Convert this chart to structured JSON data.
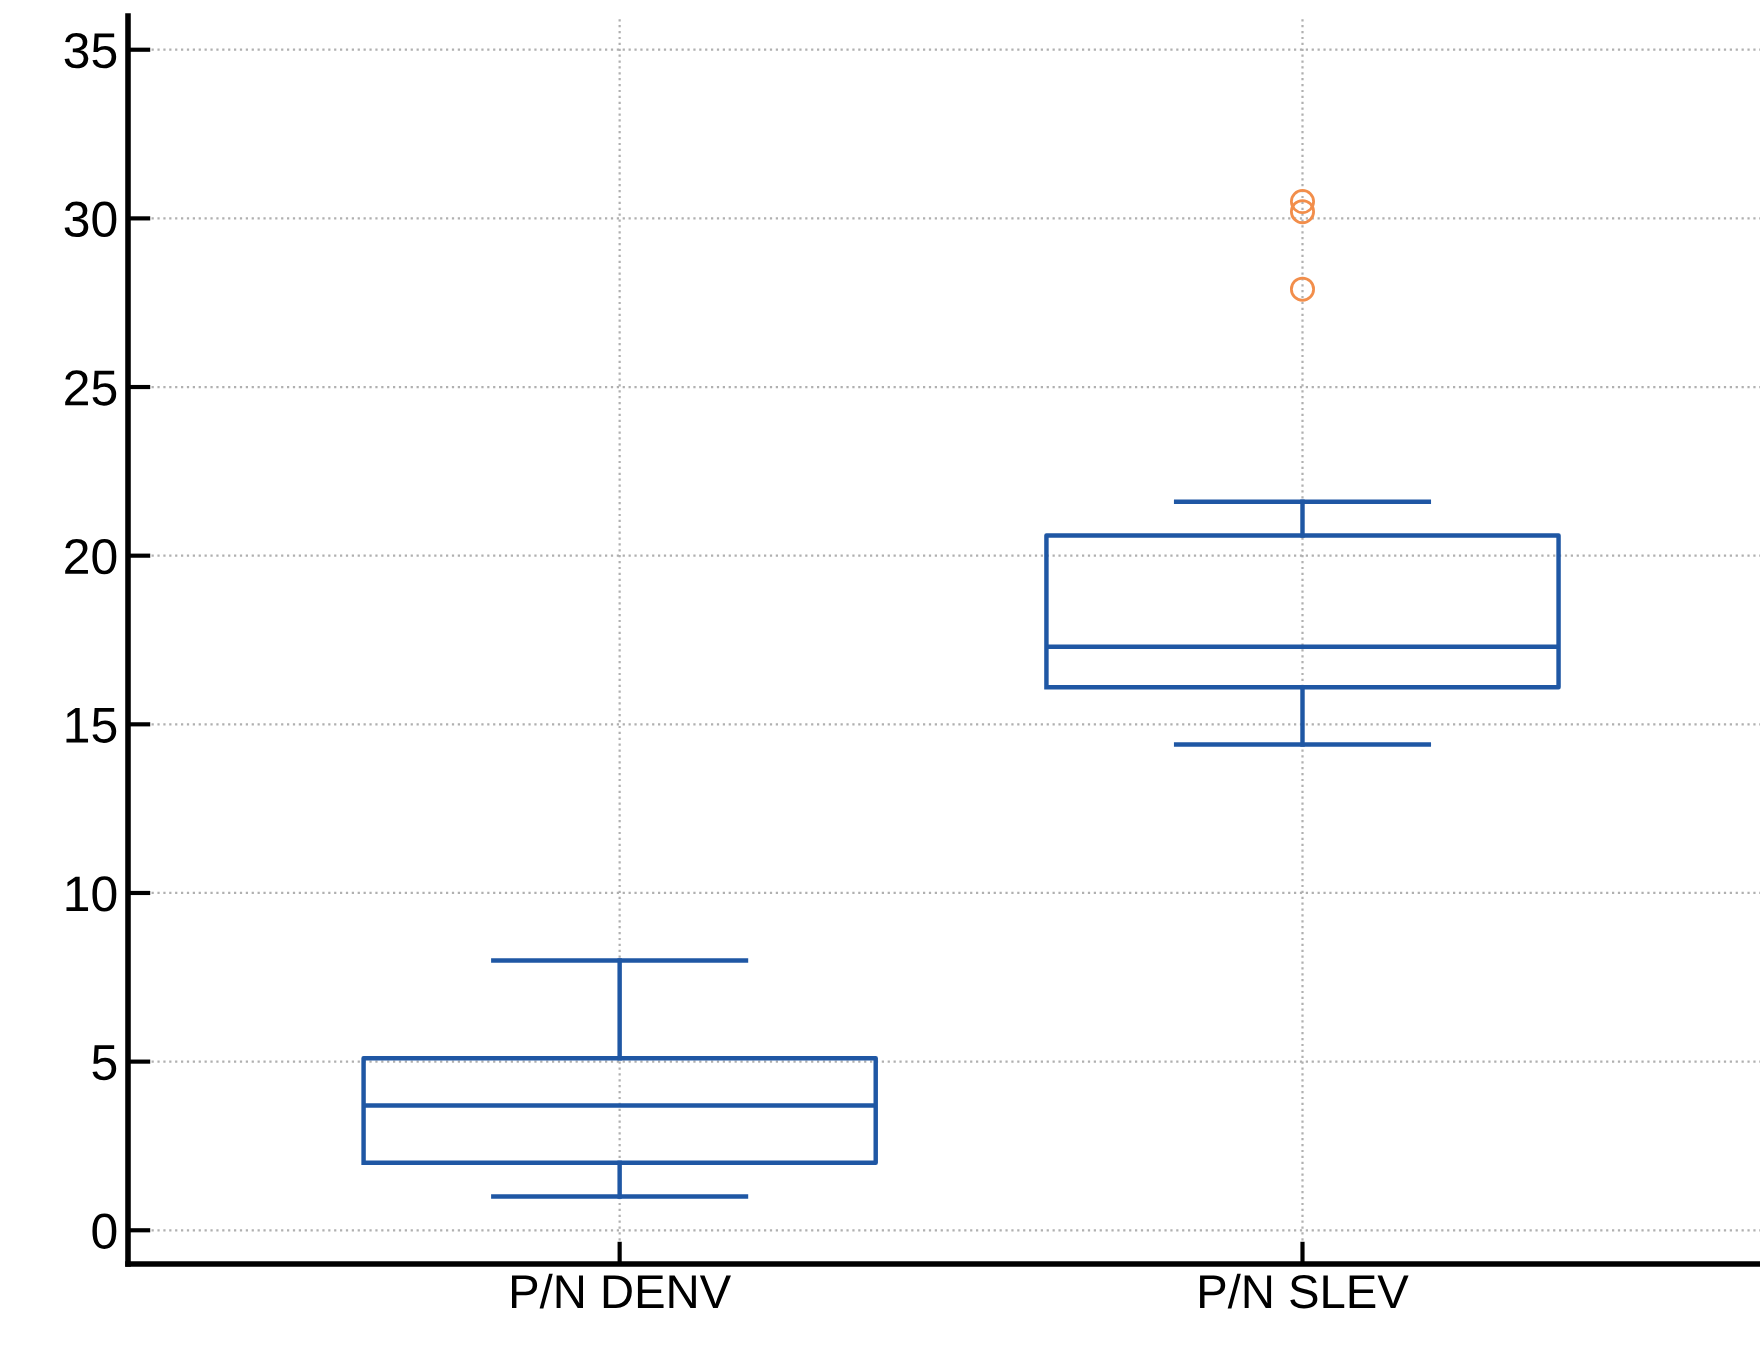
{
  "chart_data": {
    "type": "box",
    "categories": [
      "P/N DENV",
      "P/N SLEV"
    ],
    "boxes": [
      {
        "low": 1.0,
        "q1": 2.0,
        "median": 3.7,
        "q3": 5.1,
        "high": 8.0
      },
      {
        "low": 14.4,
        "q1": 16.1,
        "median": 17.3,
        "q3": 20.6,
        "high": 21.6,
        "outliers": [
          30.2,
          30.5,
          27.9
        ]
      }
    ],
    "color": "#1f57a4",
    "ylim": [
      -1,
      36
    ],
    "yticks": [
      0,
      5,
      10,
      15,
      20,
      25,
      30,
      35
    ],
    "grid": true,
    "marker": "circle"
  }
}
